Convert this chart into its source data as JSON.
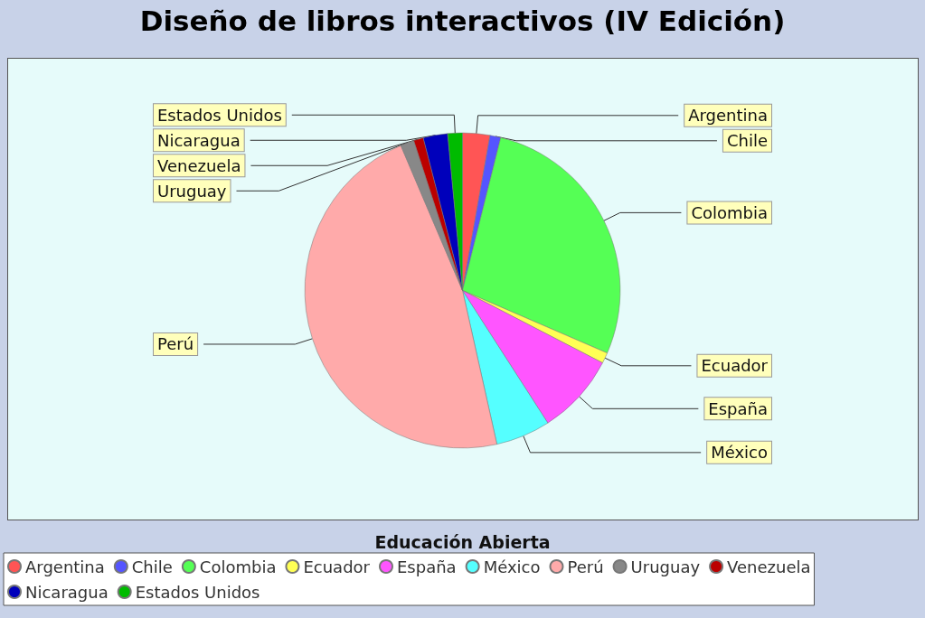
{
  "chart_data": {
    "type": "pie",
    "title": "Diseño de libros interactivos (IV Edición)",
    "xlabel": "Educación Abierta",
    "categories": [
      "Argentina",
      "Chile",
      "Colombia",
      "Ecuador",
      "España",
      "México",
      "Perú",
      "Uruguay",
      "Venezuela",
      "Nicaragua",
      "Estados Unidos"
    ],
    "values": [
      2.8,
      1.1,
      27.6,
      1.1,
      8.3,
      5.6,
      47.1,
      1.4,
      1.0,
      2.5,
      1.5
    ],
    "colors": [
      "#ff5555",
      "#5555ff",
      "#55ff55",
      "#ffff55",
      "#ff55ff",
      "#55ffff",
      "#ffaaaa",
      "#888888",
      "#bb0000",
      "#0000bb",
      "#00bb00"
    ],
    "legend": "bottom"
  }
}
